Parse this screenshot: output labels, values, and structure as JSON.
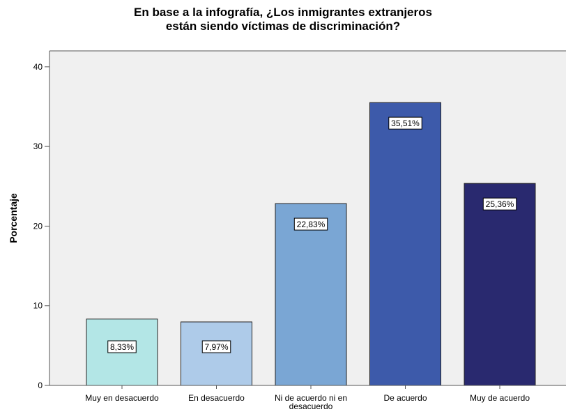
{
  "chart_data": {
    "type": "bar",
    "title_lines": [
      "En base a la infografía, ¿Los inmigrantes extranjeros",
      "están siendo víctimas de discriminación?"
    ],
    "ylabel": "Porcentaje",
    "xlabel": "",
    "ylim": [
      0,
      40
    ],
    "yticks": [
      0,
      10,
      20,
      30,
      40
    ],
    "grid": false,
    "categories": [
      [
        "Muy en desacuerdo"
      ],
      [
        "En desacuerdo"
      ],
      [
        "Ni de acuerdo ni en",
        "desacuerdo"
      ],
      [
        "De acuerdo"
      ],
      [
        "Muy de acuerdo"
      ]
    ],
    "values": [
      8.33,
      7.97,
      22.83,
      35.51,
      25.36
    ],
    "data_labels": [
      "8,33%",
      "7,97%",
      "22,83%",
      "35,51%",
      "25,36%"
    ],
    "colors": [
      "#b3e6e6",
      "#aecbe9",
      "#7aa6d4",
      "#3d5aaa",
      "#29296f"
    ],
    "plot_background": "#f0f0f0"
  }
}
